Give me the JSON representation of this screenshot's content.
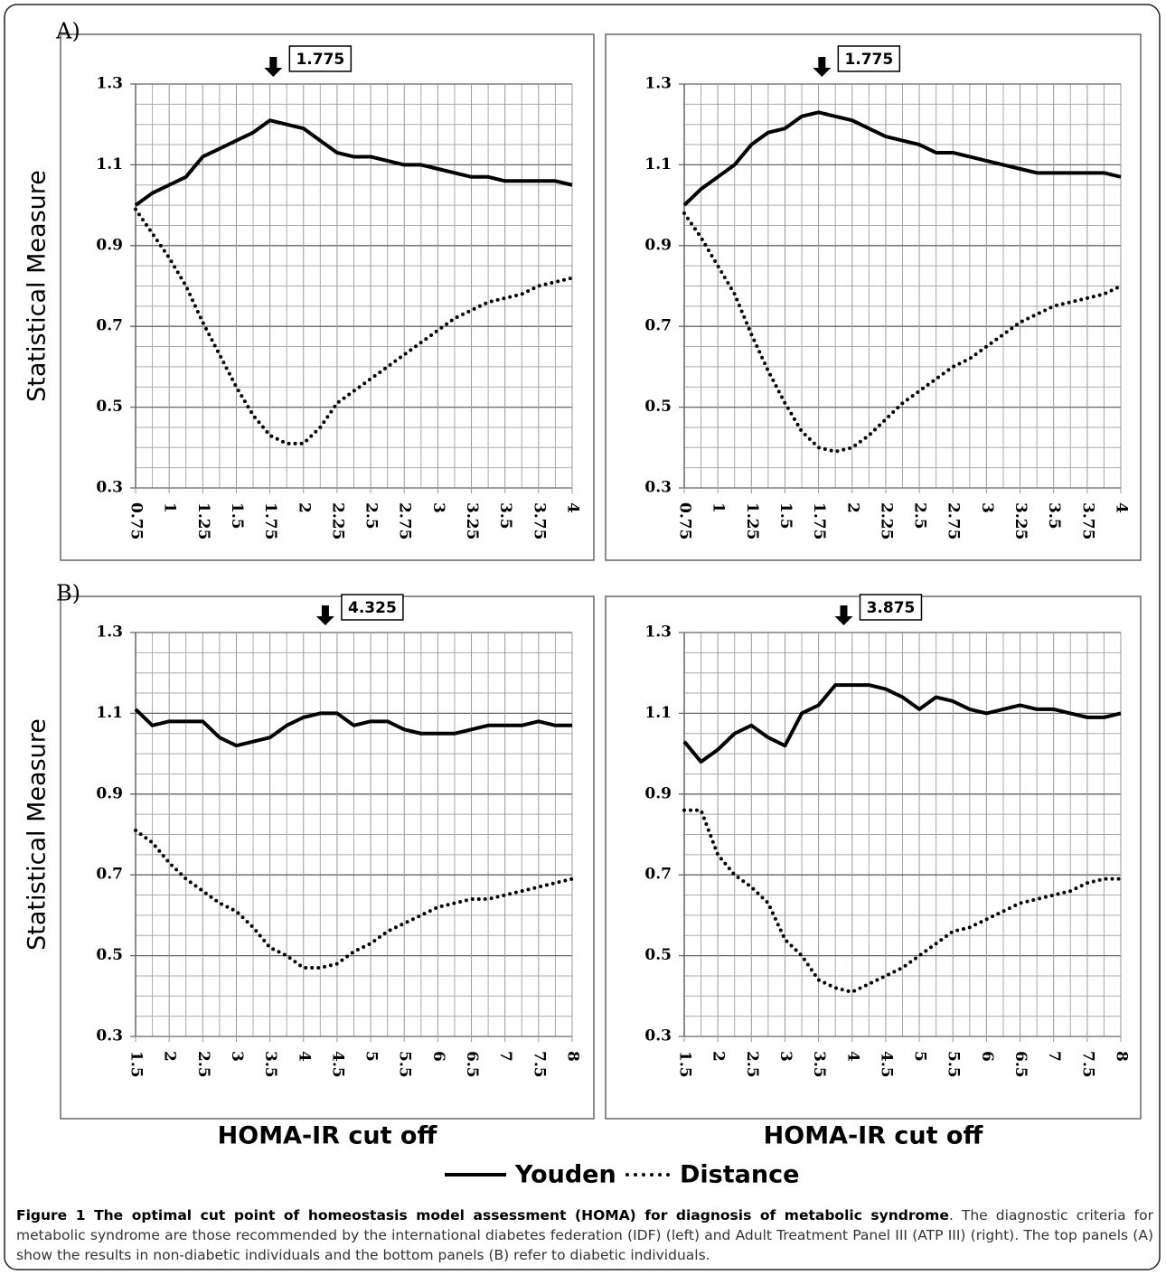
{
  "chart_data": [
    {
      "type": "line",
      "panel_label": "A)",
      "ylabel": "Statistical Measure",
      "annotation": 1.775,
      "x": [
        0.75,
        0.875,
        1,
        1.125,
        1.25,
        1.375,
        1.5,
        1.625,
        1.75,
        1.875,
        2,
        2.125,
        2.25,
        2.375,
        2.5,
        2.625,
        2.75,
        2.875,
        3,
        3.125,
        3.25,
        3.375,
        3.5,
        3.625,
        3.75,
        3.875,
        4
      ],
      "series": [
        {
          "name": "Youden",
          "color": "#000000",
          "style": "solid",
          "values": [
            1.0,
            1.03,
            1.05,
            1.07,
            1.12,
            1.14,
            1.16,
            1.18,
            1.21,
            1.2,
            1.19,
            1.16,
            1.13,
            1.12,
            1.12,
            1.11,
            1.1,
            1.1,
            1.09,
            1.08,
            1.07,
            1.07,
            1.06,
            1.06,
            1.06,
            1.06,
            1.05
          ]
        },
        {
          "name": "Distance",
          "color": "#000000",
          "style": "dotted",
          "values": [
            0.99,
            0.93,
            0.87,
            0.8,
            0.71,
            0.63,
            0.55,
            0.48,
            0.43,
            0.41,
            0.41,
            0.45,
            0.51,
            0.54,
            0.57,
            0.6,
            0.63,
            0.66,
            0.69,
            0.72,
            0.74,
            0.76,
            0.77,
            0.78,
            0.8,
            0.81,
            0.82
          ]
        }
      ],
      "xlim": [
        0.75,
        4
      ],
      "xticks": [
        0.75,
        1,
        1.25,
        1.5,
        1.75,
        2,
        2.25,
        2.5,
        2.75,
        3,
        3.25,
        3.5,
        3.75,
        4
      ],
      "ylim": [
        0.3,
        1.3
      ],
      "yticks": [
        0.3,
        0.5,
        0.7,
        0.9,
        1.1,
        1.3
      ],
      "grid": true,
      "xgrid_divisions": 2,
      "ygrid_divisions": 4
    },
    {
      "type": "line",
      "annotation": 1.775,
      "x": [
        0.75,
        0.875,
        1,
        1.125,
        1.25,
        1.375,
        1.5,
        1.625,
        1.75,
        1.875,
        2,
        2.125,
        2.25,
        2.375,
        2.5,
        2.625,
        2.75,
        2.875,
        3,
        3.125,
        3.25,
        3.375,
        3.5,
        3.625,
        3.75,
        3.875,
        4
      ],
      "series": [
        {
          "name": "Youden",
          "color": "#000000",
          "style": "solid",
          "values": [
            1.0,
            1.04,
            1.07,
            1.1,
            1.15,
            1.18,
            1.19,
            1.22,
            1.23,
            1.22,
            1.21,
            1.19,
            1.17,
            1.16,
            1.15,
            1.13,
            1.13,
            1.12,
            1.11,
            1.1,
            1.09,
            1.08,
            1.08,
            1.08,
            1.08,
            1.08,
            1.07
          ]
        },
        {
          "name": "Distance",
          "color": "#000000",
          "style": "dotted",
          "values": [
            0.98,
            0.92,
            0.85,
            0.78,
            0.68,
            0.59,
            0.51,
            0.44,
            0.4,
            0.39,
            0.4,
            0.43,
            0.47,
            0.51,
            0.54,
            0.57,
            0.6,
            0.62,
            0.65,
            0.68,
            0.71,
            0.73,
            0.75,
            0.76,
            0.77,
            0.78,
            0.8
          ]
        }
      ],
      "xlim": [
        0.75,
        4
      ],
      "xticks": [
        0.75,
        1,
        1.25,
        1.5,
        1.75,
        2,
        2.25,
        2.5,
        2.75,
        3,
        3.25,
        3.5,
        3.75,
        4
      ],
      "ylim": [
        0.3,
        1.3
      ],
      "yticks": [
        0.3,
        0.5,
        0.7,
        0.9,
        1.1,
        1.3
      ],
      "grid": true,
      "xgrid_divisions": 2,
      "ygrid_divisions": 4
    },
    {
      "type": "line",
      "panel_label": "B)",
      "ylabel": "Statistical Measure",
      "xlabel": "HOMA-IR cut off",
      "annotation": 4.325,
      "x": [
        1.5,
        1.75,
        2,
        2.25,
        2.5,
        2.75,
        3,
        3.25,
        3.5,
        3.75,
        4,
        4.25,
        4.5,
        4.75,
        5,
        5.25,
        5.5,
        5.75,
        6,
        6.25,
        6.5,
        6.75,
        7,
        7.25,
        7.5,
        7.75,
        8
      ],
      "series": [
        {
          "name": "Youden",
          "color": "#000000",
          "style": "solid",
          "values": [
            1.11,
            1.07,
            1.08,
            1.08,
            1.08,
            1.04,
            1.02,
            1.03,
            1.04,
            1.07,
            1.09,
            1.1,
            1.1,
            1.07,
            1.08,
            1.08,
            1.06,
            1.05,
            1.05,
            1.05,
            1.06,
            1.07,
            1.07,
            1.07,
            1.08,
            1.07,
            1.07
          ]
        },
        {
          "name": "Distance",
          "color": "#000000",
          "style": "dotted",
          "values": [
            0.81,
            0.78,
            0.73,
            0.69,
            0.66,
            0.63,
            0.61,
            0.57,
            0.52,
            0.5,
            0.47,
            0.47,
            0.48,
            0.51,
            0.53,
            0.56,
            0.58,
            0.6,
            0.62,
            0.63,
            0.64,
            0.64,
            0.65,
            0.66,
            0.67,
            0.68,
            0.69
          ]
        }
      ],
      "xlim": [
        1.5,
        8
      ],
      "xticks": [
        1.5,
        2,
        2.5,
        3,
        3.5,
        4,
        4.5,
        5,
        5.5,
        6,
        6.5,
        7,
        7.5,
        8
      ],
      "ylim": [
        0.3,
        1.3
      ],
      "yticks": [
        0.3,
        0.5,
        0.7,
        0.9,
        1.1,
        1.3
      ],
      "grid": true,
      "xgrid_divisions": 2,
      "ygrid_divisions": 4
    },
    {
      "type": "line",
      "xlabel": "HOMA-IR cut off",
      "annotation": 3.875,
      "x": [
        1.5,
        1.75,
        2,
        2.25,
        2.5,
        2.75,
        3,
        3.25,
        3.5,
        3.75,
        4,
        4.25,
        4.5,
        4.75,
        5,
        5.25,
        5.5,
        5.75,
        6,
        6.25,
        6.5,
        6.75,
        7,
        7.25,
        7.5,
        7.75,
        8
      ],
      "series": [
        {
          "name": "Youden",
          "color": "#000000",
          "style": "solid",
          "values": [
            1.03,
            0.98,
            1.01,
            1.05,
            1.07,
            1.04,
            1.02,
            1.1,
            1.12,
            1.17,
            1.17,
            1.17,
            1.16,
            1.14,
            1.11,
            1.14,
            1.13,
            1.11,
            1.1,
            1.11,
            1.12,
            1.11,
            1.11,
            1.1,
            1.09,
            1.09,
            1.1
          ]
        },
        {
          "name": "Distance",
          "color": "#000000",
          "style": "dotted",
          "values": [
            0.86,
            0.86,
            0.75,
            0.7,
            0.67,
            0.63,
            0.54,
            0.5,
            0.44,
            0.42,
            0.41,
            0.43,
            0.45,
            0.47,
            0.5,
            0.53,
            0.56,
            0.57,
            0.59,
            0.61,
            0.63,
            0.64,
            0.65,
            0.66,
            0.68,
            0.69,
            0.69
          ]
        }
      ],
      "xlim": [
        1.5,
        8
      ],
      "xticks": [
        1.5,
        2,
        2.5,
        3,
        3.5,
        4,
        4.5,
        5,
        5.5,
        6,
        6.5,
        7,
        7.5,
        8
      ],
      "ylim": [
        0.3,
        1.3
      ],
      "yticks": [
        0.3,
        0.5,
        0.7,
        0.9,
        1.1,
        1.3
      ],
      "grid": true,
      "xgrid_divisions": 2,
      "ygrid_divisions": 4
    }
  ],
  "caption": {
    "title": "Figure 1 The optimal cut point of homeostasis model assessment (HOMA) for diagnosis of metabolic syndrome",
    "text": ". The diagnostic criteria for metabolic syndrome are those recommended by the international diabetes federation (IDF) (left) and Adult Treatment Panel III (ATP III) (right). The top panels (A) show the results in non-diabetic individuals and the bottom panels (B) refer to diabetic individuals."
  }
}
